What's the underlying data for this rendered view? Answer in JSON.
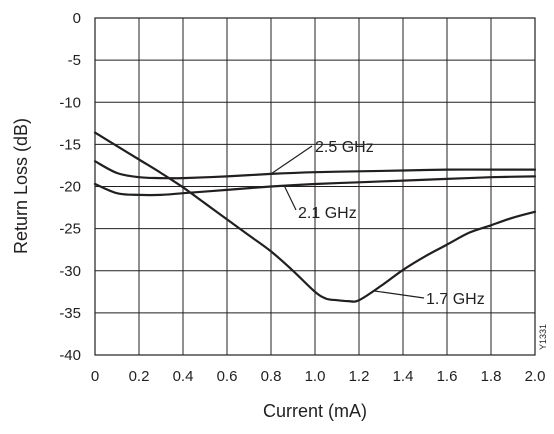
{
  "chart_data": {
    "type": "line",
    "xlabel": "Current (mA)",
    "ylabel": "Return Loss (dB)",
    "xlim": [
      0,
      2.0
    ],
    "ylim": [
      -40,
      0
    ],
    "grid": true,
    "x_ticks": [
      "0",
      "0.2",
      "0.4",
      "0.6",
      "0.8",
      "1.0",
      "1.2",
      "1.4",
      "1.6",
      "1.8",
      "2.0"
    ],
    "y_ticks": [
      "0",
      "-5",
      "-10",
      "-15",
      "-20",
      "-25",
      "-30",
      "-35",
      "-40"
    ],
    "figure_id": "Y1331",
    "series": [
      {
        "name": "2.5 GHz",
        "x": [
          0,
          0.1,
          0.2,
          0.3,
          0.4,
          0.6,
          0.8,
          1.0,
          1.2,
          1.4,
          1.6,
          1.8,
          2.0
        ],
        "values": [
          -17.0,
          -18.4,
          -18.9,
          -19.0,
          -19.0,
          -18.8,
          -18.5,
          -18.3,
          -18.2,
          -18.1,
          -18.0,
          -18.0,
          -18.0
        ]
      },
      {
        "name": "2.1 GHz",
        "x": [
          0,
          0.1,
          0.2,
          0.3,
          0.4,
          0.6,
          0.8,
          1.0,
          1.2,
          1.4,
          1.6,
          1.8,
          2.0
        ],
        "values": [
          -19.7,
          -20.8,
          -21.0,
          -21.0,
          -20.8,
          -20.4,
          -20.0,
          -19.7,
          -19.5,
          -19.3,
          -19.1,
          -18.9,
          -18.8
        ]
      },
      {
        "name": "1.7 GHz",
        "x": [
          0,
          0.1,
          0.2,
          0.3,
          0.4,
          0.5,
          0.6,
          0.7,
          0.8,
          0.9,
          1.0,
          1.05,
          1.1,
          1.15,
          1.2,
          1.3,
          1.4,
          1.5,
          1.6,
          1.7,
          1.8,
          1.9,
          2.0
        ],
        "values": [
          -13.6,
          -15.2,
          -16.8,
          -18.4,
          -20.1,
          -22.0,
          -23.9,
          -25.8,
          -27.7,
          -30.0,
          -32.5,
          -33.3,
          -33.5,
          -33.6,
          -33.5,
          -31.8,
          -29.9,
          -28.3,
          -26.9,
          -25.5,
          -24.6,
          -23.7,
          -23.0
        ]
      }
    ]
  }
}
